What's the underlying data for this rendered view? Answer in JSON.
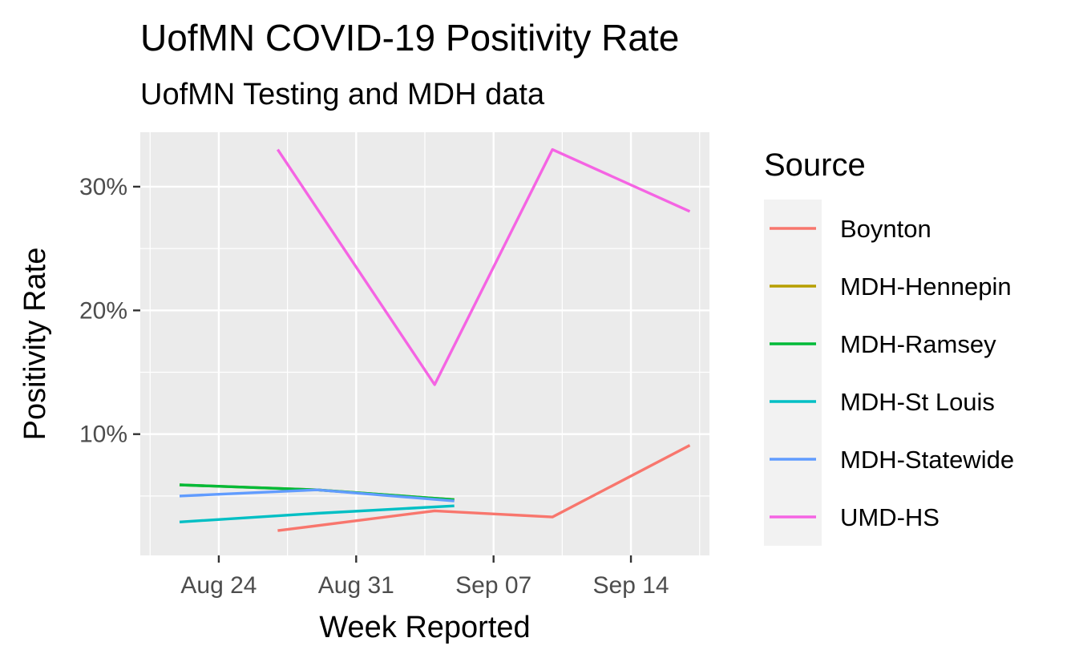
{
  "chart_data": {
    "type": "line",
    "title": "UofMN COVID-19 Positivity Rate",
    "subtitle": "UofMN Testing and MDH data",
    "xlabel": "Week Reported",
    "ylabel": "Positivity Rate",
    "x_ticks": [
      {
        "date": "2020-08-24",
        "label": "Aug 24"
      },
      {
        "date": "2020-08-31",
        "label": "Aug 31"
      },
      {
        "date": "2020-09-07",
        "label": "Sep 07"
      },
      {
        "date": "2020-09-14",
        "label": "Sep 14"
      }
    ],
    "xlim": [
      "2020-08-20",
      "2020-09-18"
    ],
    "y_ticks": [
      {
        "value": 10,
        "label": "10%"
      },
      {
        "value": 20,
        "label": "20%"
      },
      {
        "value": 30,
        "label": "30%"
      }
    ],
    "ylim": [
      0.2,
      34.4
    ],
    "legend_title": "Source",
    "legend_position": "right",
    "grid": true,
    "background": "#ebebeb",
    "series": [
      {
        "name": "Boynton",
        "color": "#f8766d",
        "points": [
          {
            "x": "2020-08-27",
            "y": 2.2
          },
          {
            "x": "2020-09-04",
            "y": 3.8
          },
          {
            "x": "2020-09-10",
            "y": 3.3
          },
          {
            "x": "2020-09-17",
            "y": 9.1
          }
        ]
      },
      {
        "name": "MDH-Hennepin",
        "color": "#b79f00",
        "points": [
          {
            "x": "2020-08-22",
            "y": 5.9
          },
          {
            "x": "2020-08-29",
            "y": 5.5
          },
          {
            "x": "2020-09-05",
            "y": 4.7
          }
        ]
      },
      {
        "name": "MDH-Ramsey",
        "color": "#00ba38",
        "points": [
          {
            "x": "2020-08-22",
            "y": 5.9
          },
          {
            "x": "2020-08-29",
            "y": 5.5
          },
          {
            "x": "2020-09-05",
            "y": 4.7
          }
        ]
      },
      {
        "name": "MDH-St Louis",
        "color": "#00bfc4",
        "points": [
          {
            "x": "2020-08-22",
            "y": 2.9
          },
          {
            "x": "2020-08-29",
            "y": 3.6
          },
          {
            "x": "2020-09-05",
            "y": 4.2
          }
        ]
      },
      {
        "name": "MDH-Statewide",
        "color": "#619cff",
        "points": [
          {
            "x": "2020-08-22",
            "y": 5.0
          },
          {
            "x": "2020-08-29",
            "y": 5.5
          },
          {
            "x": "2020-09-05",
            "y": 4.6
          }
        ]
      },
      {
        "name": "UMD-HS",
        "color": "#f564e3",
        "points": [
          {
            "x": "2020-08-27",
            "y": 33.0
          },
          {
            "x": "2020-09-04",
            "y": 14.0
          },
          {
            "x": "2020-09-10",
            "y": 33.0
          },
          {
            "x": "2020-09-17",
            "y": 28.0
          }
        ]
      }
    ]
  }
}
